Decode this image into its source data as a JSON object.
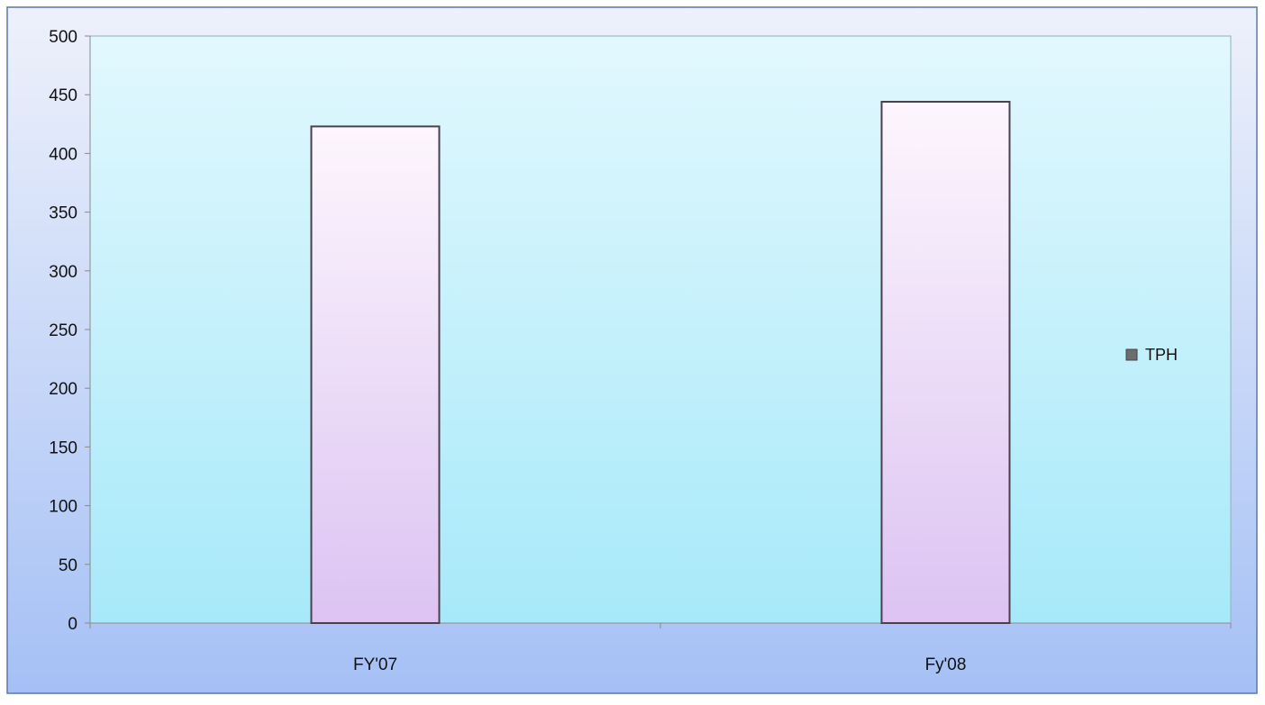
{
  "chart_data": {
    "type": "bar",
    "categories": [
      "FY'07",
      "Fy'08"
    ],
    "series": [
      {
        "name": "TPH",
        "values": [
          423,
          444
        ]
      }
    ],
    "yticks": [
      0,
      50,
      100,
      150,
      200,
      250,
      300,
      350,
      400,
      450,
      500
    ],
    "ylim": [
      0,
      500
    ],
    "grid": false,
    "legend": "right",
    "colors": {
      "bar_top": "#fdf6fd",
      "bar_bottom": "#dcc3f2",
      "bar_edge": "#4a3f4c",
      "plot_bg_top": "#e2f8fe",
      "plot_bg_bottom": "#a7e9f9",
      "frame_bg_top": "#eef1fb",
      "frame_bg_bottom": "#a5c0f5",
      "frame_border": "#5a78a8",
      "plot_border": "#8fb0b8",
      "legend_swatch": "#6d6d6d"
    }
  }
}
